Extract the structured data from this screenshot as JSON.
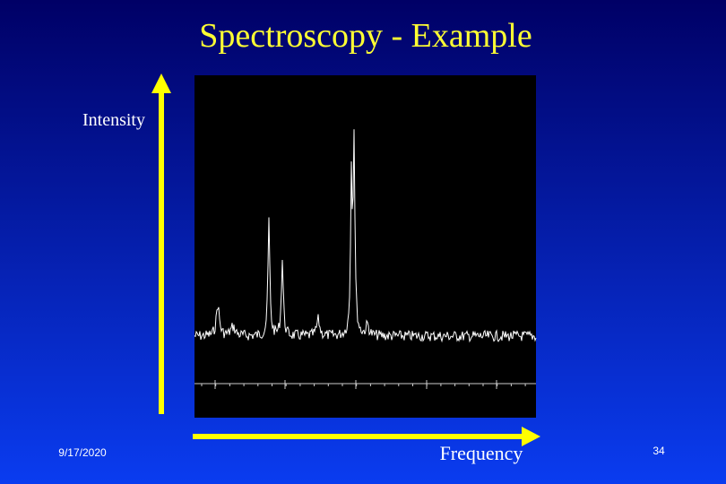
{
  "header": {
    "title": "Spectroscopy - Example"
  },
  "axis_labels": {
    "y": "Intensity",
    "x": "Frequency"
  },
  "footer": {
    "date": "9/17/2020",
    "page": "34"
  }
}
